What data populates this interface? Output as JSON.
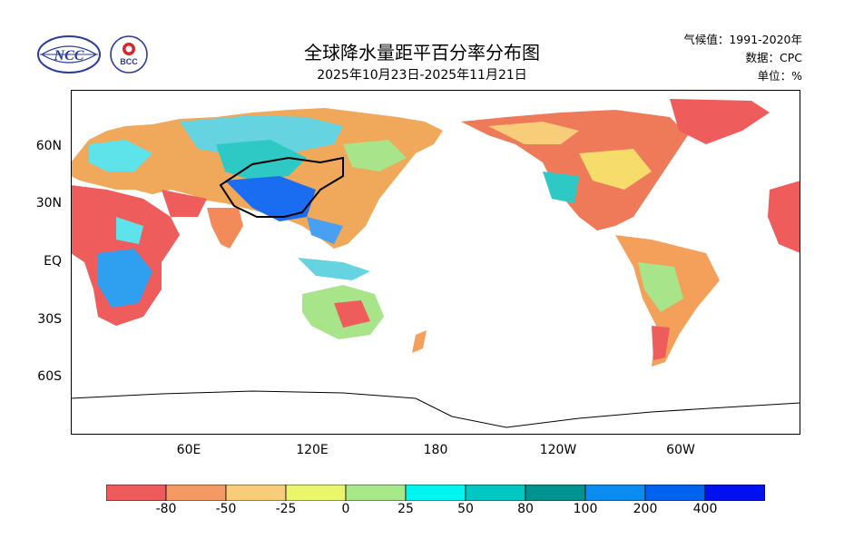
{
  "header": {
    "title": "全球降水量距平百分率分布图",
    "subtitle": "2025年10月23日-2025年11月21日",
    "climate_baseline": "气候值：1991-2020年",
    "data_source": "数据：CPC",
    "unit": "单位：%"
  },
  "logos": {
    "ncc_text": "NCC",
    "bcc_text": "BCC"
  },
  "axes": {
    "y_ticks": [
      "60N",
      "30N",
      "EQ",
      "30S",
      "60S"
    ],
    "x_ticks": [
      "60E",
      "120E",
      "180",
      "120W",
      "60W"
    ]
  },
  "colorbar": {
    "labels": [
      "-80",
      "-50",
      "-25",
      "0",
      "25",
      "50",
      "80",
      "100",
      "200",
      "400"
    ],
    "colors": [
      "#ee5b5b",
      "#f59a64",
      "#f7cd7a",
      "#e9f56a",
      "#a6e88a",
      "#00f5f0",
      "#00c7c2",
      "#00928e",
      "#0a8cf0",
      "#0063f0",
      "#0010f0"
    ]
  }
}
